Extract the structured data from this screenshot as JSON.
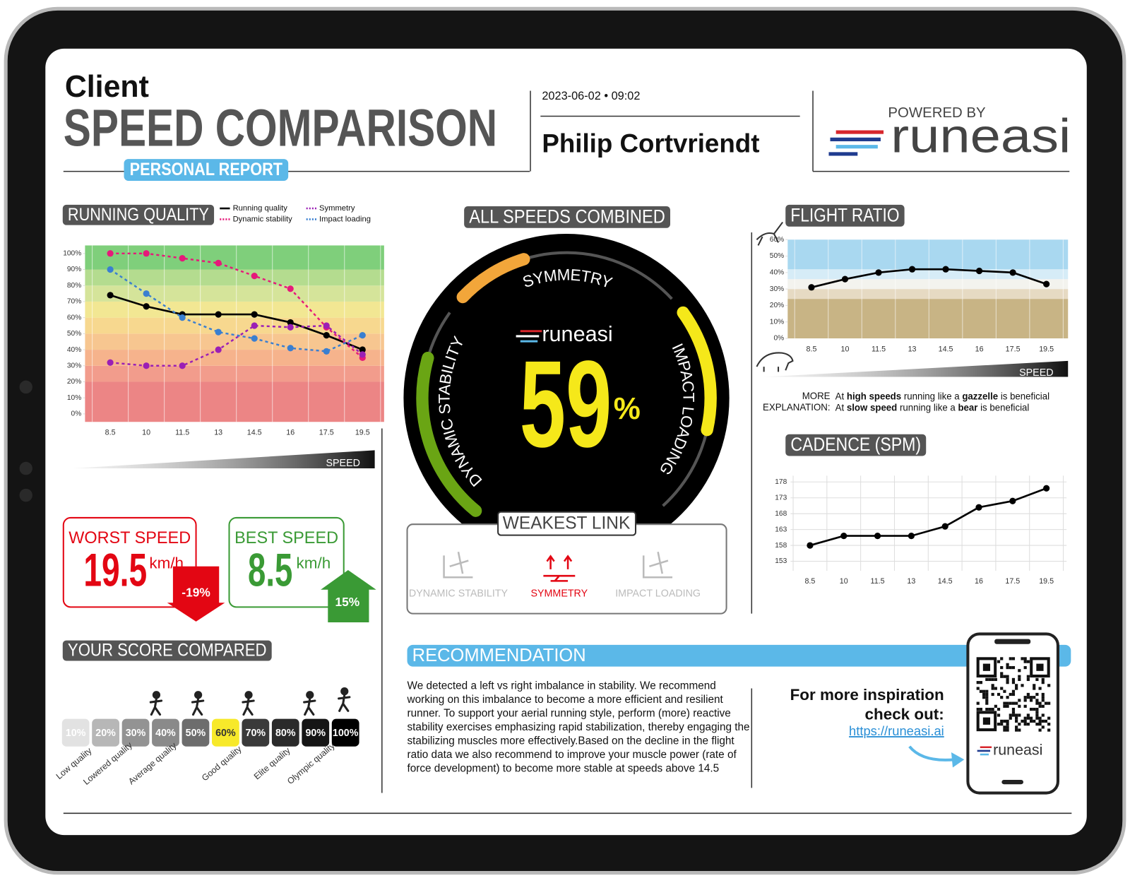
{
  "header": {
    "client": "Client",
    "title": "SPEED COMPARISON",
    "subtitle": "PERSONAL REPORT",
    "datetime": "2023-06-02 • 09:02",
    "athlete": "Philip Cortvriendt",
    "powered_by": "POWERED BY",
    "brand": "runeasi"
  },
  "running_quality": {
    "type": "line",
    "title": "RUNNING QUALITY",
    "categories": [
      "8.5",
      "10",
      "11.5",
      "13",
      "14.5",
      "16",
      "17.5",
      "19.5"
    ],
    "x_label": "SPEED",
    "ylim": [
      -5,
      105
    ],
    "yticks": [
      {
        "value": 0,
        "label": "0%"
      },
      {
        "value": 10,
        "label": "10%"
      },
      {
        "value": 20,
        "label": "20%"
      },
      {
        "value": 30,
        "label": "30%"
      },
      {
        "value": 40,
        "label": "40%"
      },
      {
        "value": 50,
        "label": "50%"
      },
      {
        "value": 60,
        "label": "60%"
      },
      {
        "value": 70,
        "label": "70%"
      },
      {
        "value": 80,
        "label": "80%"
      },
      {
        "value": 90,
        "label": "90%"
      },
      {
        "value": 100,
        "label": "100%"
      }
    ],
    "bands": [
      {
        "from": -5,
        "to": 20,
        "color": "#ec8585"
      },
      {
        "from": 20,
        "to": 30,
        "color": "#f29c8c"
      },
      {
        "from": 30,
        "to": 40,
        "color": "#f6b38c"
      },
      {
        "from": 40,
        "to": 50,
        "color": "#f7c690"
      },
      {
        "from": 50,
        "to": 60,
        "color": "#f7d88f"
      },
      {
        "from": 60,
        "to": 70,
        "color": "#f2e793"
      },
      {
        "from": 70,
        "to": 80,
        "color": "#d5e49a"
      },
      {
        "from": 80,
        "to": 90,
        "color": "#b4dc8f"
      },
      {
        "from": 90,
        "to": 105,
        "color": "#7fcf7b"
      }
    ],
    "series": [
      {
        "name": "Running quality",
        "color": "#000000",
        "style": "solid",
        "values": [
          74,
          67,
          62,
          62,
          62,
          57,
          49,
          40
        ]
      },
      {
        "name": "Dynamic stability",
        "color": "#e6197a",
        "style": "dotted",
        "values": [
          100,
          100,
          97,
          94,
          86,
          78,
          54,
          35
        ]
      },
      {
        "name": "Symmetry",
        "color": "#9b1fb5",
        "style": "dotted",
        "values": [
          32,
          30,
          30,
          40,
          55,
          54,
          55,
          37
        ]
      },
      {
        "name": "Impact loading",
        "color": "#3a7fd0",
        "style": "dotted",
        "values": [
          90,
          75,
          60,
          51,
          47,
          41,
          39,
          49
        ]
      }
    ]
  },
  "gauge": {
    "title": "ALL SPEEDS COMBINED",
    "score": 59,
    "unit": "%",
    "score_color": "#f5e81a",
    "segments": [
      {
        "name": "DYNAMIC STABILITY",
        "color": "#6aa514",
        "value": 77
      },
      {
        "name": "SYMMETRY",
        "color": "#f2a63a",
        "value": 31
      },
      {
        "name": "IMPACT LOADING",
        "color": "#f5e81a",
        "value": 58
      }
    ]
  },
  "weakest_link": {
    "title": "WEAKEST LINK",
    "items": [
      {
        "label": "DYNAMIC STABILITY",
        "weakest": false
      },
      {
        "label": "SYMMETRY",
        "weakest": true
      },
      {
        "label": "IMPACT LOADING",
        "weakest": false
      }
    ]
  },
  "worst_speed": {
    "title": "WORST SPEED",
    "value": "19.5",
    "unit": "km/h",
    "change": "-19%",
    "color": "#e30613"
  },
  "best_speed": {
    "title": "BEST SPEED",
    "value": "8.5",
    "unit": "km/h",
    "change": "15%",
    "color": "#3a9a35"
  },
  "score_compared": {
    "title": "YOUR SCORE COMPARED",
    "levels": [
      {
        "label": "10%",
        "color": "#e2e2e2",
        "text_color": "#ffffff"
      },
      {
        "label": "20%",
        "color": "#b7b7b7",
        "text_color": "#ffffff"
      },
      {
        "label": "30%",
        "color": "#939393",
        "text_color": "#ffffff"
      },
      {
        "label": "40%",
        "color": "#8a8a8a",
        "text_color": "#ffffff"
      },
      {
        "label": "50%",
        "color": "#6d6d6d",
        "text_color": "#ffffff"
      },
      {
        "label": "60%",
        "color": "#f7e92a",
        "text_color": "#333333"
      },
      {
        "label": "70%",
        "color": "#3a3a3a",
        "text_color": "#ffffff"
      },
      {
        "label": "80%",
        "color": "#2a2a2a",
        "text_color": "#ffffff"
      },
      {
        "label": "90%",
        "color": "#151515",
        "text_color": "#ffffff"
      },
      {
        "label": "100%",
        "color": "#000000",
        "text_color": "#ffffff"
      }
    ],
    "qualities": [
      "Low quality",
      "Lowered quality",
      "Average quality",
      "Good quality",
      "Elite quality",
      "Olympic quality"
    ]
  },
  "flight_ratio": {
    "type": "line",
    "title": "FLIGHT RATIO",
    "categories": [
      "8.5",
      "10",
      "11.5",
      "13",
      "14.5",
      "16",
      "17.5",
      "19.5"
    ],
    "x_label": "SPEED",
    "ylim": [
      0,
      60
    ],
    "yticks": [
      {
        "value": 0,
        "label": "0%"
      },
      {
        "value": 10,
        "label": "10%"
      },
      {
        "value": 20,
        "label": "20%"
      },
      {
        "value": 30,
        "label": "30%"
      },
      {
        "value": 40,
        "label": "40%"
      },
      {
        "value": 50,
        "label": "50%"
      },
      {
        "value": 60,
        "label": "60%"
      }
    ],
    "bands": [
      {
        "from": 0,
        "to": 24,
        "color": "#c8b485"
      },
      {
        "from": 24,
        "to": 30,
        "color": "#e6dac3"
      },
      {
        "from": 30,
        "to": 36,
        "color": "#f3f3ee"
      },
      {
        "from": 36,
        "to": 42,
        "color": "#d6ecf7"
      },
      {
        "from": 42,
        "to": 60,
        "color": "#a9d8f0"
      }
    ],
    "color": "#000000",
    "values": [
      31,
      36,
      40,
      42,
      42,
      41,
      40,
      33
    ],
    "explanation": {
      "label": [
        "MORE",
        "EXPLANATION:"
      ],
      "lines": [
        [
          "At ",
          "high speeds",
          " running like a ",
          "gazzelle",
          " is beneficial"
        ],
        [
          "At ",
          "slow speed",
          " running like a ",
          "bear",
          " is beneficial"
        ]
      ]
    }
  },
  "cadence": {
    "type": "line",
    "title": "CADENCE (SPM)",
    "categories": [
      "8.5",
      "10",
      "11.5",
      "13",
      "14.5",
      "16",
      "17.5",
      "19.5"
    ],
    "ylim": [
      150,
      180
    ],
    "yticks": [
      153,
      158,
      163,
      168,
      173,
      178
    ],
    "grid": true,
    "color": "#000000",
    "values": [
      158,
      161,
      161,
      161,
      164,
      170,
      172,
      176
    ]
  },
  "recommendation": {
    "title": "RECOMMENDATION",
    "text": "We detected a left vs right imbalance in stability. We recommend working on this imbalance to become a more efficient and resilient runner. To support your aerial running style, perform (more) reactive stability exercises emphasizing rapid stabilization, thereby engaging the stabilizing muscles more effectively.Based on the decline in the flight ratio data we also recommend to improve your muscle power (rate of force development) to become more stable at speeds above 14.5",
    "cta": [
      "For more inspiration",
      "check out:"
    ],
    "link": "https://runeasi.ai"
  }
}
